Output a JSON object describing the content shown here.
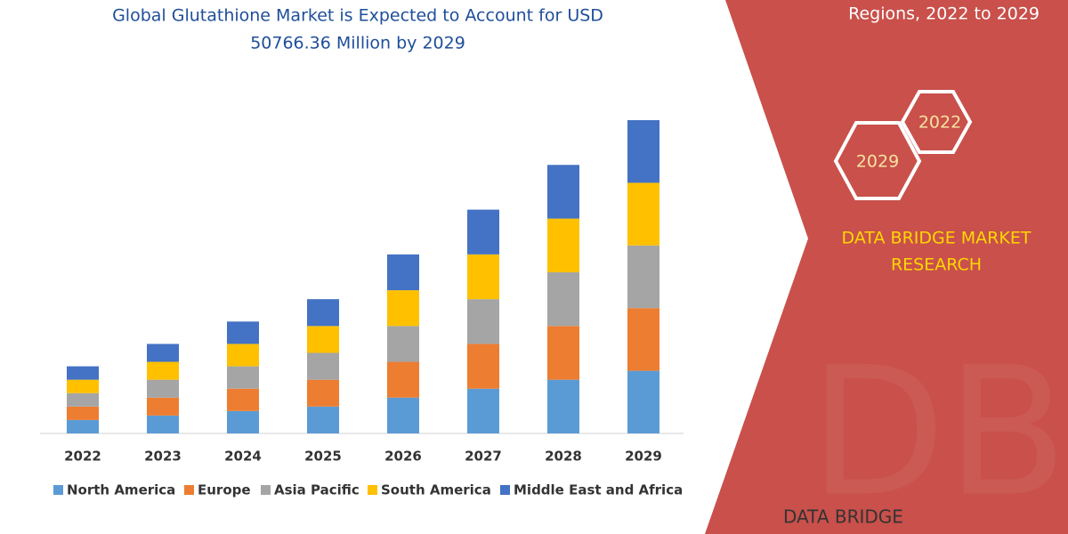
{
  "chart_data": {
    "type": "stacked_bar",
    "title": "Global Glutathione Market is Expected to Account for USD",
    "subtitle": "50766.36 Million by 2029",
    "categories": [
      "2022",
      "2023",
      "2024",
      "2025",
      "2026",
      "2027",
      "2028",
      "2029"
    ],
    "series": [
      {
        "name": "North America",
        "color": "#5b9bd5",
        "values": [
          15,
          20,
          25,
          30,
          40,
          50,
          60,
          70
        ]
      },
      {
        "name": "Europe",
        "color": "#ed7d31",
        "values": [
          15,
          20,
          25,
          30,
          40,
          50,
          60,
          70
        ]
      },
      {
        "name": "Asia Pacific",
        "color": "#a5a5a5",
        "values": [
          15,
          20,
          25,
          30,
          40,
          50,
          60,
          70
        ]
      },
      {
        "name": "South America",
        "color": "#ffc000",
        "values": [
          15,
          20,
          25,
          30,
          40,
          50,
          60,
          70
        ]
      },
      {
        "name": "Middle East and Africa",
        "color": "#4472c4",
        "values": [
          15,
          20,
          25,
          30,
          40,
          50,
          60,
          70
        ]
      }
    ],
    "ylim": [
      0,
      350
    ]
  },
  "panel": {
    "heading": "Regions, 2022 to 2029",
    "hex_top": "2022",
    "hex_bottom": "2029",
    "brand_line1": "DATA BRIDGE MARKET",
    "brand_line2": "RESEARCH",
    "logo": "DATA BRIDGE"
  }
}
